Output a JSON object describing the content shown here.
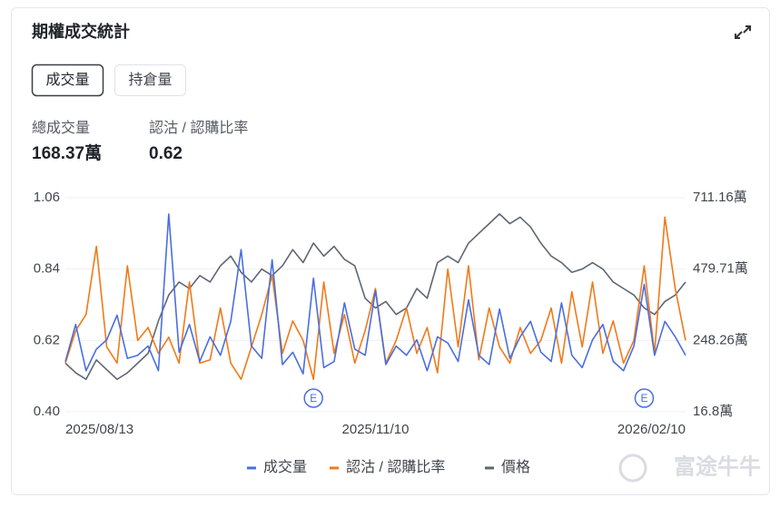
{
  "header": {
    "title": "期權成交統計"
  },
  "tabs": [
    "成交量",
    "持倉量"
  ],
  "stats": [
    {
      "label": "總成交量",
      "value": "168.37萬"
    },
    {
      "label": "認沽 / 認購比率",
      "value": "0.62"
    }
  ],
  "watermark": "富途牛牛",
  "chart_data": {
    "type": "line",
    "categories": [
      "2025/08/13",
      null,
      null,
      null,
      null,
      null,
      null,
      null,
      null,
      null,
      null,
      null,
      null,
      null,
      null,
      null,
      null,
      null,
      null,
      null,
      null,
      null,
      null,
      null,
      null,
      null,
      null,
      null,
      null,
      null,
      "2025/11/10",
      null,
      null,
      null,
      null,
      null,
      null,
      null,
      null,
      null,
      null,
      null,
      null,
      null,
      null,
      null,
      null,
      null,
      null,
      null,
      null,
      null,
      null,
      null,
      null,
      null,
      null,
      null,
      null,
      null,
      "2026/02/10"
    ],
    "series": [
      {
        "name": "成交量",
        "color": "#4a6ee0",
        "axis": "y2",
        "values": [
          180,
          300,
          150,
          220,
          250,
          330,
          190,
          200,
          230,
          150,
          658,
          210,
          300,
          180,
          260,
          200,
          310,
          543,
          230,
          190,
          510,
          170,
          210,
          140,
          450,
          160,
          180,
          370,
          220,
          200,
          410,
          170,
          230,
          200,
          250,
          150,
          260,
          240,
          180,
          380,
          200,
          170,
          350,
          190,
          260,
          310,
          210,
          180,
          370,
          200,
          160,
          250,
          300,
          180,
          150,
          230,
          430,
          200,
          310,
          260,
          200
        ]
      },
      {
        "name": "認沽 / 認購比率",
        "color": "#f07a1a",
        "values": [
          0.55,
          0.65,
          0.7,
          0.91,
          0.6,
          0.55,
          0.85,
          0.62,
          0.66,
          0.58,
          0.63,
          0.55,
          0.8,
          0.55,
          0.56,
          0.72,
          0.55,
          0.5,
          0.6,
          0.7,
          0.82,
          0.58,
          0.68,
          0.62,
          0.5,
          0.8,
          0.58,
          0.7,
          0.55,
          0.65,
          0.78,
          0.55,
          0.62,
          0.72,
          0.58,
          0.66,
          0.52,
          0.84,
          0.6,
          0.85,
          0.56,
          0.72,
          0.6,
          0.55,
          0.66,
          0.58,
          0.62,
          0.72,
          0.55,
          0.77,
          0.6,
          0.8,
          0.58,
          0.68,
          0.55,
          0.62,
          0.85,
          0.58,
          1.0,
          0.78,
          0.62
        ]
      },
      {
        "name": "價格",
        "color": "#5f6773",
        "values": [
          0.55,
          0.52,
          0.5,
          0.56,
          0.53,
          0.5,
          0.52,
          0.55,
          0.58,
          0.68,
          0.76,
          0.8,
          0.78,
          0.82,
          0.8,
          0.85,
          0.88,
          0.83,
          0.8,
          0.84,
          0.82,
          0.85,
          0.9,
          0.86,
          0.92,
          0.88,
          0.91,
          0.87,
          0.85,
          0.75,
          0.72,
          0.74,
          0.7,
          0.72,
          0.78,
          0.75,
          0.86,
          0.88,
          0.86,
          0.92,
          0.95,
          0.98,
          1.01,
          0.98,
          1.0,
          0.97,
          0.92,
          0.88,
          0.86,
          0.83,
          0.84,
          0.86,
          0.84,
          0.8,
          0.78,
          0.76,
          0.72,
          0.7,
          0.74,
          0.76,
          0.8
        ]
      }
    ],
    "ylim": [
      0.4,
      1.06
    ],
    "yticks": [
      {
        "value": 0.4,
        "label": "0.40"
      },
      0.62,
      0.84,
      1.06
    ],
    "y2lim": [
      16.8,
      711.16
    ],
    "y2ticks": [
      {
        "value": 16.8,
        "label": "16.8萬"
      },
      {
        "value": 248.26,
        "label": "248.26萬"
      },
      {
        "value": 479.71,
        "label": "479.71萬"
      },
      {
        "value": 711.16,
        "label": "711.16萬"
      }
    ],
    "grid": true,
    "legend": "bottom",
    "annotations": [
      {
        "text": "E",
        "category_index": 24
      },
      {
        "text": "E",
        "category_index": 56
      }
    ]
  }
}
